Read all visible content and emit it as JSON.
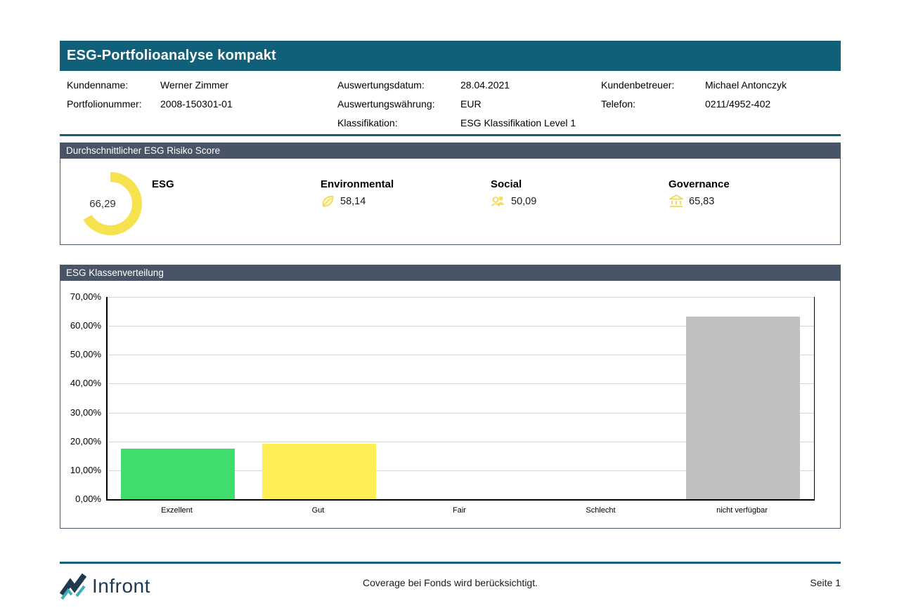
{
  "colors": {
    "teal": "#11607A",
    "slate_header": "#475566",
    "grid_line": "#D6D6D6",
    "axis": "#000000",
    "icon_yellow": "#F2D94B",
    "logo_navy": "#20394E",
    "logo_teal": "#41AEBE"
  },
  "title_bar": {
    "title": "ESG-Portfolioanalyse kompakt"
  },
  "info": {
    "col1": [
      {
        "label": "Kundenname:",
        "value": "Werner Zimmer"
      },
      {
        "label": "Portfolionummer:",
        "value": "2008-150301-01"
      }
    ],
    "col2": [
      {
        "label": "Auswertungsdatum:",
        "value": "28.04.2021"
      },
      {
        "label": "Auswertungswährung:",
        "value": "EUR"
      },
      {
        "label": "Klassifikation:",
        "value": "ESG Klassifikation Level 1"
      }
    ],
    "col3": [
      {
        "label": "Kundenbetreuer:",
        "value": "Michael Antonczyk"
      },
      {
        "label": "Telefon:",
        "value": "0211/4952-402"
      }
    ]
  },
  "score_section": {
    "header": "Durchschnittlicher ESG Risiko Score",
    "esg_label": "ESG",
    "donut": {
      "value": 66.29,
      "value_label": "66,29",
      "color": "#F5E24E"
    },
    "metrics": [
      {
        "name": "Environmental",
        "value_label": "58,14",
        "icon": "leaf-icon"
      },
      {
        "name": "Social",
        "value_label": "50,09",
        "icon": "people-icon"
      },
      {
        "name": "Governance",
        "value_label": "65,83",
        "icon": "bank-icon"
      }
    ]
  },
  "chart_data": {
    "type": "bar",
    "title": "ESG Klassenverteilung",
    "categories": [
      "Exzellent",
      "Gut",
      "Fair",
      "Schlecht",
      "nicht verfügbar"
    ],
    "values": [
      17.5,
      19.3,
      0,
      0,
      63.2
    ],
    "colors": [
      "#3EDD6E",
      "#FFEE55",
      null,
      null,
      "#C0C0C0"
    ],
    "xlabel": "",
    "ylabel": "",
    "ylim": [
      0,
      70
    ],
    "grid": true,
    "legend": null,
    "yticks": [
      {
        "v": 0,
        "label": "0,00%"
      },
      {
        "v": 10,
        "label": "10,00%"
      },
      {
        "v": 20,
        "label": "20,00%"
      },
      {
        "v": 30,
        "label": "30,00%"
      },
      {
        "v": 40,
        "label": "40,00%"
      },
      {
        "v": 50,
        "label": "50,00%"
      },
      {
        "v": 60,
        "label": "60,00%"
      },
      {
        "v": 70,
        "label": "70,00%"
      }
    ]
  },
  "footer": {
    "note": "Coverage bei Fonds wird berücksichtigt.",
    "page": "Seite 1",
    "logo_text": "Infront"
  }
}
